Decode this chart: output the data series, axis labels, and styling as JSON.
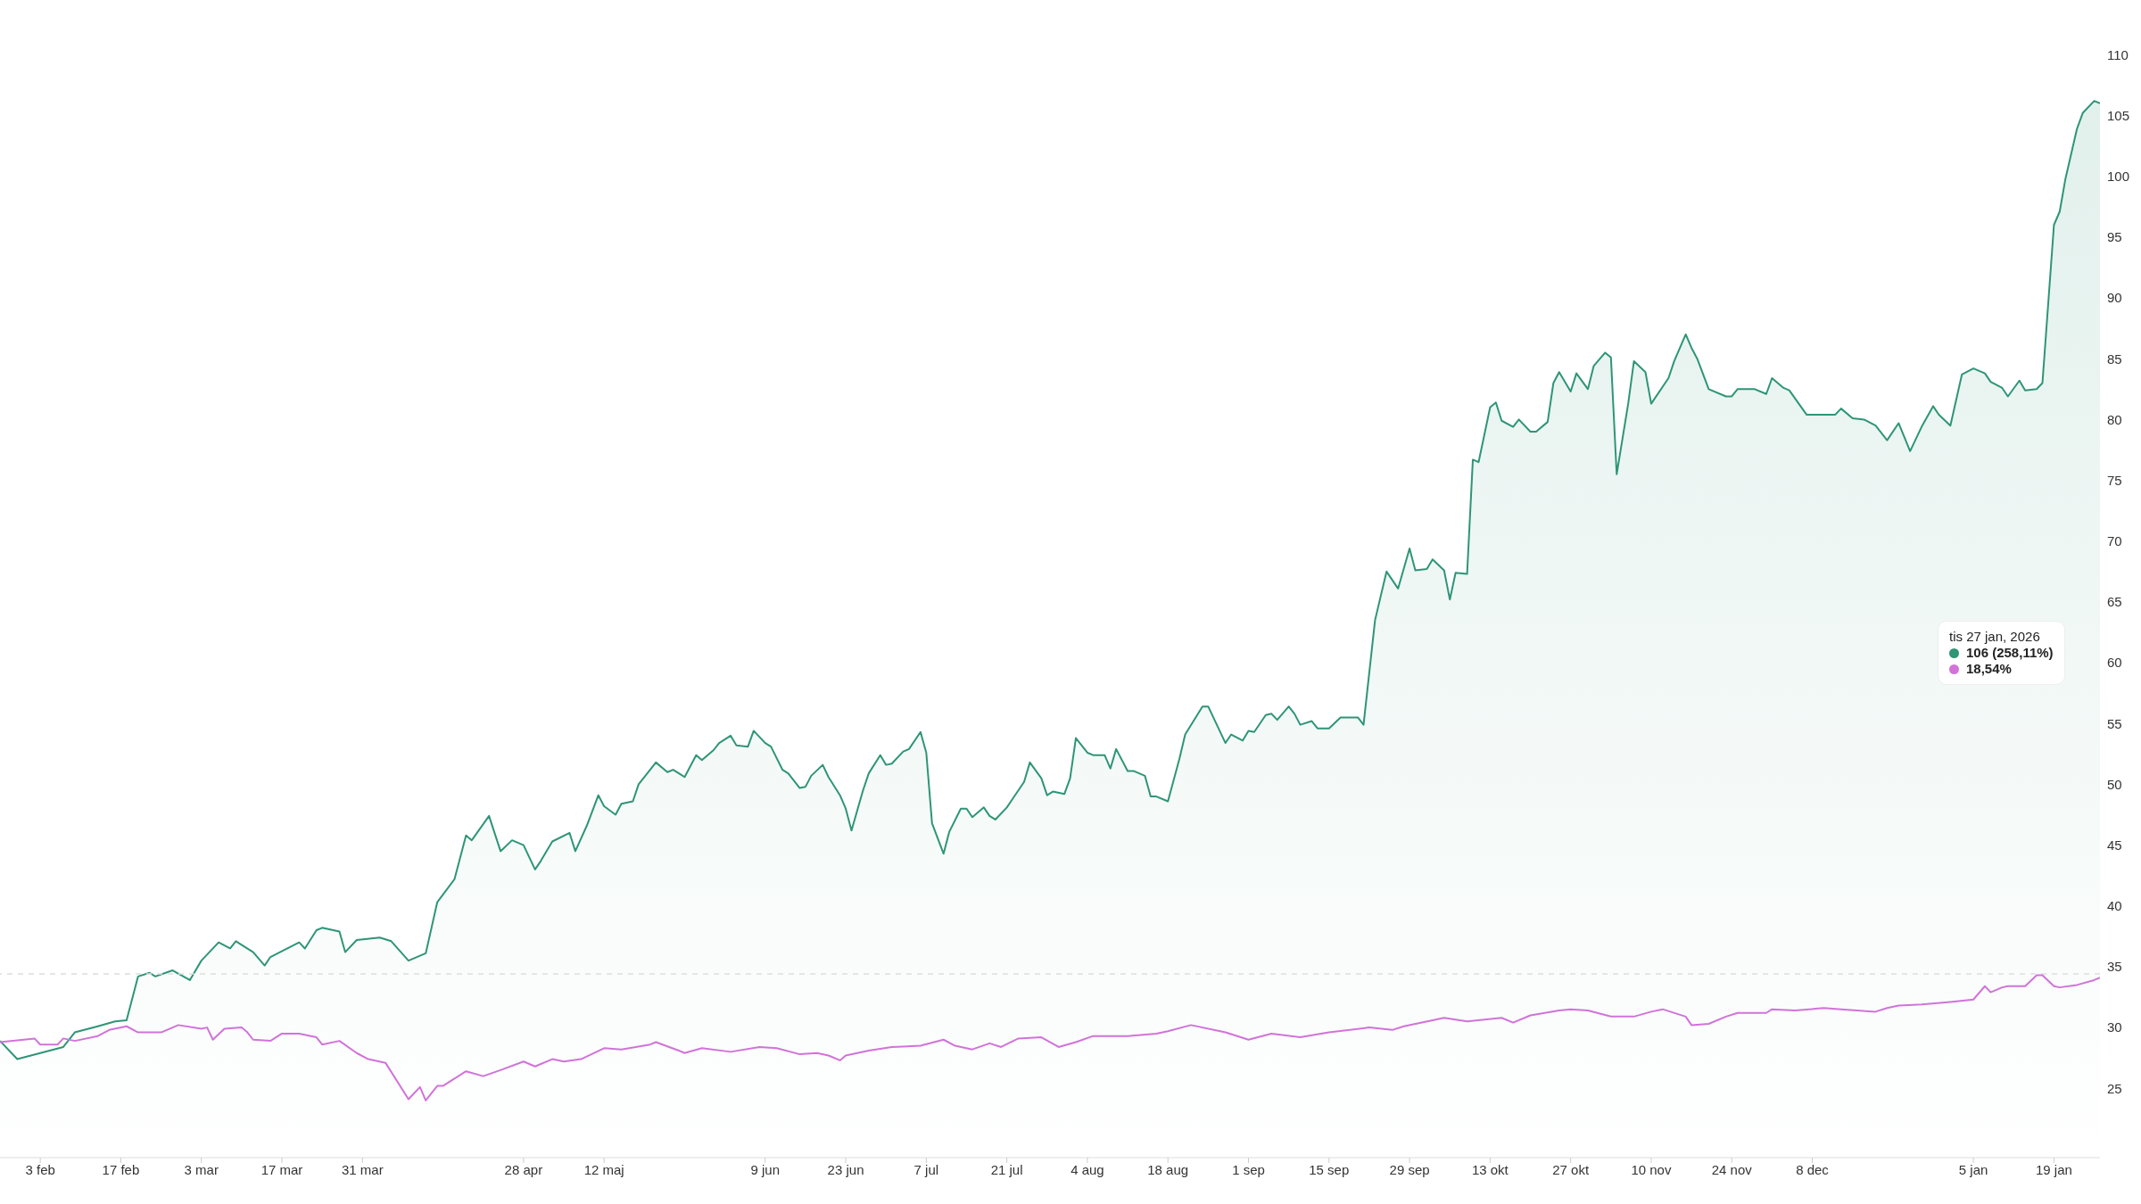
{
  "chart_data": {
    "type": "line",
    "annotations": [
      "tis 27 jan, 2026",
      "106 (258,11%)",
      "18,54%"
    ],
    "series": [
      {
        "type": "area",
        "color": "#2e9577",
        "x": [
          "2025-01-27",
          "2025-01-30",
          "2025-02-07",
          "2025-02-09",
          "2025-02-13",
          "2025-02-16",
          "2025-02-18",
          "2025-02-20",
          "2025-02-22",
          "2025-02-23",
          "2025-02-26",
          "2025-03-01",
          "2025-03-03",
          "2025-03-06",
          "2025-03-08",
          "2025-03-09",
          "2025-03-12",
          "2025-03-14",
          "2025-03-15",
          "2025-03-20",
          "2025-03-21",
          "2025-03-23",
          "2025-03-24",
          "2025-03-27",
          "2025-03-28",
          "2025-03-30",
          "2025-04-03",
          "2025-04-05",
          "2025-04-08",
          "2025-04-11",
          "2025-04-13",
          "2025-04-16",
          "2025-04-18",
          "2025-04-19",
          "2025-04-22",
          "2025-04-24",
          "2025-04-26",
          "2025-04-28",
          "2025-04-30",
          "2025-05-01",
          "2025-05-03",
          "2025-05-06",
          "2025-05-07",
          "2025-05-09",
          "2025-05-11",
          "2025-05-12",
          "2025-05-14",
          "2025-05-15",
          "2025-05-17",
          "2025-05-18",
          "2025-05-20",
          "2025-05-21",
          "2025-05-23",
          "2025-05-24",
          "2025-05-26",
          "2025-05-28",
          "2025-05-29",
          "2025-05-31",
          "2025-06-01",
          "2025-06-03",
          "2025-06-04",
          "2025-06-06",
          "2025-06-07",
          "2025-06-09",
          "2025-06-10",
          "2025-06-12",
          "2025-06-13",
          "2025-06-15",
          "2025-06-16",
          "2025-06-17",
          "2025-06-19",
          "2025-06-20",
          "2025-06-22",
          "2025-06-23",
          "2025-06-24",
          "2025-06-26",
          "2025-06-27",
          "2025-06-29",
          "2025-06-30",
          "2025-07-01",
          "2025-07-03",
          "2025-07-04",
          "2025-07-06",
          "2025-07-07",
          "2025-07-08",
          "2025-07-10",
          "2025-07-11",
          "2025-07-13",
          "2025-07-14",
          "2025-07-15",
          "2025-07-17",
          "2025-07-18",
          "2025-07-19",
          "2025-07-21",
          "2025-07-22",
          "2025-07-24",
          "2025-07-25",
          "2025-07-27",
          "2025-07-28",
          "2025-07-29",
          "2025-07-31",
          "2025-08-01",
          "2025-08-02",
          "2025-08-04",
          "2025-08-05",
          "2025-08-07",
          "2025-08-08",
          "2025-08-09",
          "2025-08-11",
          "2025-08-12",
          "2025-08-14",
          "2025-08-15",
          "2025-08-16",
          "2025-08-18",
          "2025-08-20",
          "2025-08-21",
          "2025-08-24",
          "2025-08-25",
          "2025-08-28",
          "2025-08-29",
          "2025-08-31",
          "2025-09-01",
          "2025-09-02",
          "2025-09-04",
          "2025-09-05",
          "2025-09-06",
          "2025-09-08",
          "2025-09-09",
          "2025-09-10",
          "2025-09-12",
          "2025-09-13",
          "2025-09-15",
          "2025-09-17",
          "2025-09-20",
          "2025-09-21",
          "2025-09-23",
          "2025-09-25",
          "2025-09-27",
          "2025-09-29",
          "2025-09-30",
          "2025-10-02",
          "2025-10-03",
          "2025-10-05",
          "2025-10-06",
          "2025-10-07",
          "2025-10-09",
          "2025-10-10",
          "2025-10-11",
          "2025-10-13",
          "2025-10-14",
          "2025-10-15",
          "2025-10-17",
          "2025-10-18",
          "2025-10-20",
          "2025-10-21",
          "2025-10-23",
          "2025-10-24",
          "2025-10-25",
          "2025-10-27",
          "2025-10-28",
          "2025-10-30",
          "2025-10-31",
          "2025-11-02",
          "2025-11-03",
          "2025-11-04",
          "2025-11-06",
          "2025-11-07",
          "2025-11-09",
          "2025-11-10",
          "2025-11-13",
          "2025-11-14",
          "2025-11-16",
          "2025-11-17",
          "2025-11-18",
          "2025-11-20",
          "2025-11-23",
          "2025-11-24",
          "2025-11-25",
          "2025-11-28",
          "2025-11-30",
          "2025-12-01",
          "2025-12-03",
          "2025-12-04",
          "2025-12-07",
          "2025-12-12",
          "2025-12-13",
          "2025-12-15",
          "2025-12-17",
          "2025-12-19",
          "2025-12-21",
          "2025-12-23",
          "2025-12-25",
          "2025-12-27",
          "2025-12-29",
          "2025-12-30",
          "2026-01-01",
          "2026-01-03",
          "2026-01-05",
          "2026-01-07",
          "2026-01-08",
          "2026-01-10",
          "2026-01-11",
          "2026-01-13",
          "2026-01-14",
          "2026-01-16",
          "2026-01-17",
          "2026-01-19",
          "2026-01-20",
          "2026-01-21",
          "2026-01-23",
          "2026-01-24",
          "2026-01-26",
          "2026-01-27"
        ],
        "values": [
          28.9,
          27.4,
          28.4,
          29.6,
          30.1,
          30.5,
          30.6,
          34.2,
          34.5,
          34.2,
          34.7,
          33.9,
          35.5,
          37.0,
          36.5,
          37.1,
          36.2,
          35.1,
          35.8,
          37.0,
          36.5,
          38.0,
          38.2,
          37.9,
          36.2,
          37.2,
          37.4,
          37.1,
          35.5,
          36.1,
          40.3,
          42.2,
          45.8,
          45.4,
          47.4,
          44.5,
          45.4,
          45.0,
          43.0,
          43.7,
          45.3,
          46.0,
          44.5,
          46.6,
          49.1,
          48.2,
          47.5,
          48.4,
          48.6,
          50.0,
          51.2,
          51.8,
          51.0,
          51.2,
          50.6,
          52.4,
          52.0,
          52.8,
          53.4,
          54.0,
          53.2,
          53.1,
          54.4,
          53.4,
          53.1,
          51.2,
          50.9,
          49.7,
          49.8,
          50.7,
          51.6,
          50.6,
          49.1,
          48.0,
          46.2,
          49.5,
          50.9,
          52.4,
          51.6,
          51.7,
          52.7,
          52.9,
          54.3,
          52.6,
          46.8,
          44.3,
          46.1,
          48.0,
          48.0,
          47.3,
          48.1,
          47.4,
          47.1,
          48.1,
          48.8,
          50.2,
          51.8,
          50.5,
          49.1,
          49.4,
          49.2,
          50.5,
          53.8,
          52.6,
          52.4,
          52.4,
          51.3,
          52.9,
          51.1,
          51.1,
          50.7,
          49.0,
          49.0,
          48.6,
          52.1,
          54.1,
          56.4,
          56.4,
          53.4,
          54.1,
          53.6,
          54.4,
          54.3,
          55.7,
          55.8,
          55.3,
          56.4,
          55.8,
          54.9,
          55.2,
          54.6,
          54.6,
          55.5,
          55.5,
          54.9,
          63.5,
          67.5,
          66.1,
          69.4,
          67.6,
          67.7,
          68.5,
          67.6,
          65.2,
          67.4,
          67.3,
          76.7,
          76.5,
          81.0,
          81.4,
          79.9,
          79.4,
          80.0,
          79.0,
          79.0,
          79.8,
          83.0,
          83.9,
          82.3,
          83.8,
          82.5,
          84.4,
          85.5,
          85.1,
          75.5,
          81.3,
          84.8,
          83.9,
          81.3,
          83.4,
          84.8,
          87.0,
          85.9,
          85.0,
          82.5,
          81.9,
          81.9,
          82.5,
          82.5,
          82.1,
          83.4,
          82.6,
          82.4,
          80.4,
          80.4,
          80.9,
          80.1,
          80.0,
          79.5,
          78.3,
          79.7,
          77.4,
          79.4,
          81.1,
          80.4,
          79.5,
          83.7,
          84.2,
          83.8,
          83.1,
          82.6,
          81.9,
          83.2,
          82.4,
          82.5,
          83.0,
          96.0,
          97.1,
          99.8,
          103.9,
          105.2,
          106.2,
          106
        ]
      },
      {
        "type": "line",
        "color": "#d173d9",
        "x": [
          "2025-01-27",
          "2025-02-02",
          "2025-02-03",
          "2025-02-06",
          "2025-02-07",
          "2025-02-09",
          "2025-02-13",
          "2025-02-15",
          "2025-02-18",
          "2025-02-20",
          "2025-02-24",
          "2025-02-27",
          "2025-03-03",
          "2025-03-04",
          "2025-03-05",
          "2025-03-07",
          "2025-03-10",
          "2025-03-11",
          "2025-03-12",
          "2025-03-15",
          "2025-03-17",
          "2025-03-20",
          "2025-03-23",
          "2025-03-24",
          "2025-03-27",
          "2025-03-30",
          "2025-04-01",
          "2025-04-04",
          "2025-04-08",
          "2025-04-10",
          "2025-04-11",
          "2025-04-13",
          "2025-04-14",
          "2025-04-18",
          "2025-04-21",
          "2025-04-24",
          "2025-04-28",
          "2025-04-30",
          "2025-05-03",
          "2025-05-05",
          "2025-05-08",
          "2025-05-12",
          "2025-05-15",
          "2025-05-20",
          "2025-05-21",
          "2025-05-25",
          "2025-05-26",
          "2025-05-29",
          "2025-06-03",
          "2025-06-08",
          "2025-06-11",
          "2025-06-15",
          "2025-06-18",
          "2025-06-20",
          "2025-06-22",
          "2025-06-23",
          "2025-06-27",
          "2025-07-01",
          "2025-07-06",
          "2025-07-10",
          "2025-07-12",
          "2025-07-15",
          "2025-07-18",
          "2025-07-20",
          "2025-07-23",
          "2025-07-27",
          "2025-07-30",
          "2025-08-02",
          "2025-08-05",
          "2025-08-11",
          "2025-08-16",
          "2025-08-18",
          "2025-08-22",
          "2025-08-28",
          "2025-09-01",
          "2025-09-05",
          "2025-09-10",
          "2025-09-15",
          "2025-09-22",
          "2025-09-26",
          "2025-09-28",
          "2025-10-03",
          "2025-10-05",
          "2025-10-09",
          "2025-10-15",
          "2025-10-17",
          "2025-10-20",
          "2025-10-25",
          "2025-10-27",
          "2025-10-30",
          "2025-11-03",
          "2025-11-07",
          "2025-11-10",
          "2025-11-12",
          "2025-11-16",
          "2025-11-17",
          "2025-11-20",
          "2025-11-23",
          "2025-11-25",
          "2025-11-30",
          "2025-12-01",
          "2025-12-05",
          "2025-12-10",
          "2025-12-13",
          "2025-12-19",
          "2025-12-21",
          "2025-12-23",
          "2025-12-27",
          "2026-01-01",
          "2026-01-05",
          "2026-01-07",
          "2026-01-08",
          "2026-01-10",
          "2026-01-11",
          "2026-01-14",
          "2026-01-16",
          "2026-01-17",
          "2026-01-19",
          "2026-01-20",
          "2026-01-23",
          "2026-01-26",
          "2026-01-27"
        ],
        "values": [
          28.8,
          29.1,
          28.6,
          28.6,
          29.1,
          28.9,
          29.3,
          29.8,
          30.1,
          29.6,
          29.6,
          30.2,
          29.9,
          30.0,
          29.0,
          29.9,
          30.0,
          29.6,
          29.0,
          28.9,
          29.5,
          29.5,
          29.2,
          28.6,
          28.9,
          27.9,
          27.4,
          27.1,
          24.1,
          25.1,
          24.0,
          25.2,
          25.2,
          26.4,
          26.0,
          26.5,
          27.2,
          26.8,
          27.4,
          27.2,
          27.4,
          28.3,
          28.2,
          28.6,
          28.8,
          28.1,
          27.9,
          28.3,
          28.0,
          28.4,
          28.3,
          27.8,
          27.9,
          27.7,
          27.3,
          27.7,
          28.1,
          28.4,
          28.5,
          29.0,
          28.5,
          28.2,
          28.7,
          28.4,
          29.1,
          29.2,
          28.4,
          28.8,
          29.3,
          29.3,
          29.5,
          29.7,
          30.2,
          29.6,
          29.0,
          29.5,
          29.2,
          29.6,
          30.0,
          29.8,
          30.1,
          30.6,
          30.8,
          30.5,
          30.8,
          30.4,
          31.0,
          31.4,
          31.5,
          31.4,
          30.9,
          30.9,
          31.3,
          31.5,
          30.9,
          30.2,
          30.3,
          30.9,
          31.2,
          31.2,
          31.5,
          31.4,
          31.6,
          31.5,
          31.3,
          31.6,
          31.8,
          31.9,
          32.1,
          32.3,
          33.4,
          32.9,
          33.3,
          33.4,
          33.4,
          34.3,
          34.3,
          33.4,
          33.3,
          33.5,
          33.9,
          34.1
        ]
      }
    ],
    "xlim": [
      "2025-01-27",
      "2026-01-27"
    ],
    "xticks": [
      {
        "value": "2025-02-03",
        "label": "3 feb"
      },
      {
        "value": "2025-02-17",
        "label": "17 feb"
      },
      {
        "value": "2025-03-03",
        "label": "3 mar"
      },
      {
        "value": "2025-03-17",
        "label": "17 mar"
      },
      {
        "value": "2025-03-31",
        "label": "31 mar"
      },
      {
        "value": "2025-04-28",
        "label": "28 apr"
      },
      {
        "value": "2025-05-12",
        "label": "12 maj"
      },
      {
        "value": "2025-06-09",
        "label": "9 jun"
      },
      {
        "value": "2025-06-23",
        "label": "23 jun"
      },
      {
        "value": "2025-07-07",
        "label": "7 jul"
      },
      {
        "value": "2025-07-21",
        "label": "21 jul"
      },
      {
        "value": "2025-08-04",
        "label": "4 aug"
      },
      {
        "value": "2025-08-18",
        "label": "18 aug"
      },
      {
        "value": "2025-09-01",
        "label": "1 sep"
      },
      {
        "value": "2025-09-15",
        "label": "15 sep"
      },
      {
        "value": "2025-09-29",
        "label": "29 sep"
      },
      {
        "value": "2025-10-13",
        "label": "13 okt"
      },
      {
        "value": "2025-10-27",
        "label": "27 okt"
      },
      {
        "value": "2025-11-10",
        "label": "10 nov"
      },
      {
        "value": "2025-11-24",
        "label": "24 nov"
      },
      {
        "value": "2025-12-08",
        "label": "8 dec"
      },
      {
        "value": "2026-01-05",
        "label": "5 jan"
      },
      {
        "value": "2026-01-19",
        "label": "19 jan"
      }
    ],
    "ylim": [
      19.3,
      114.5
    ],
    "yticks": [
      25,
      30,
      35,
      40,
      45,
      50,
      55,
      60,
      65,
      70,
      75,
      80,
      85,
      90,
      95,
      100,
      105,
      110
    ],
    "ref_lines": [
      {
        "axis": "y",
        "value": 34.4,
        "color": "#dddddd",
        "line_style": "dashed"
      }
    ],
    "marker": "none"
  }
}
